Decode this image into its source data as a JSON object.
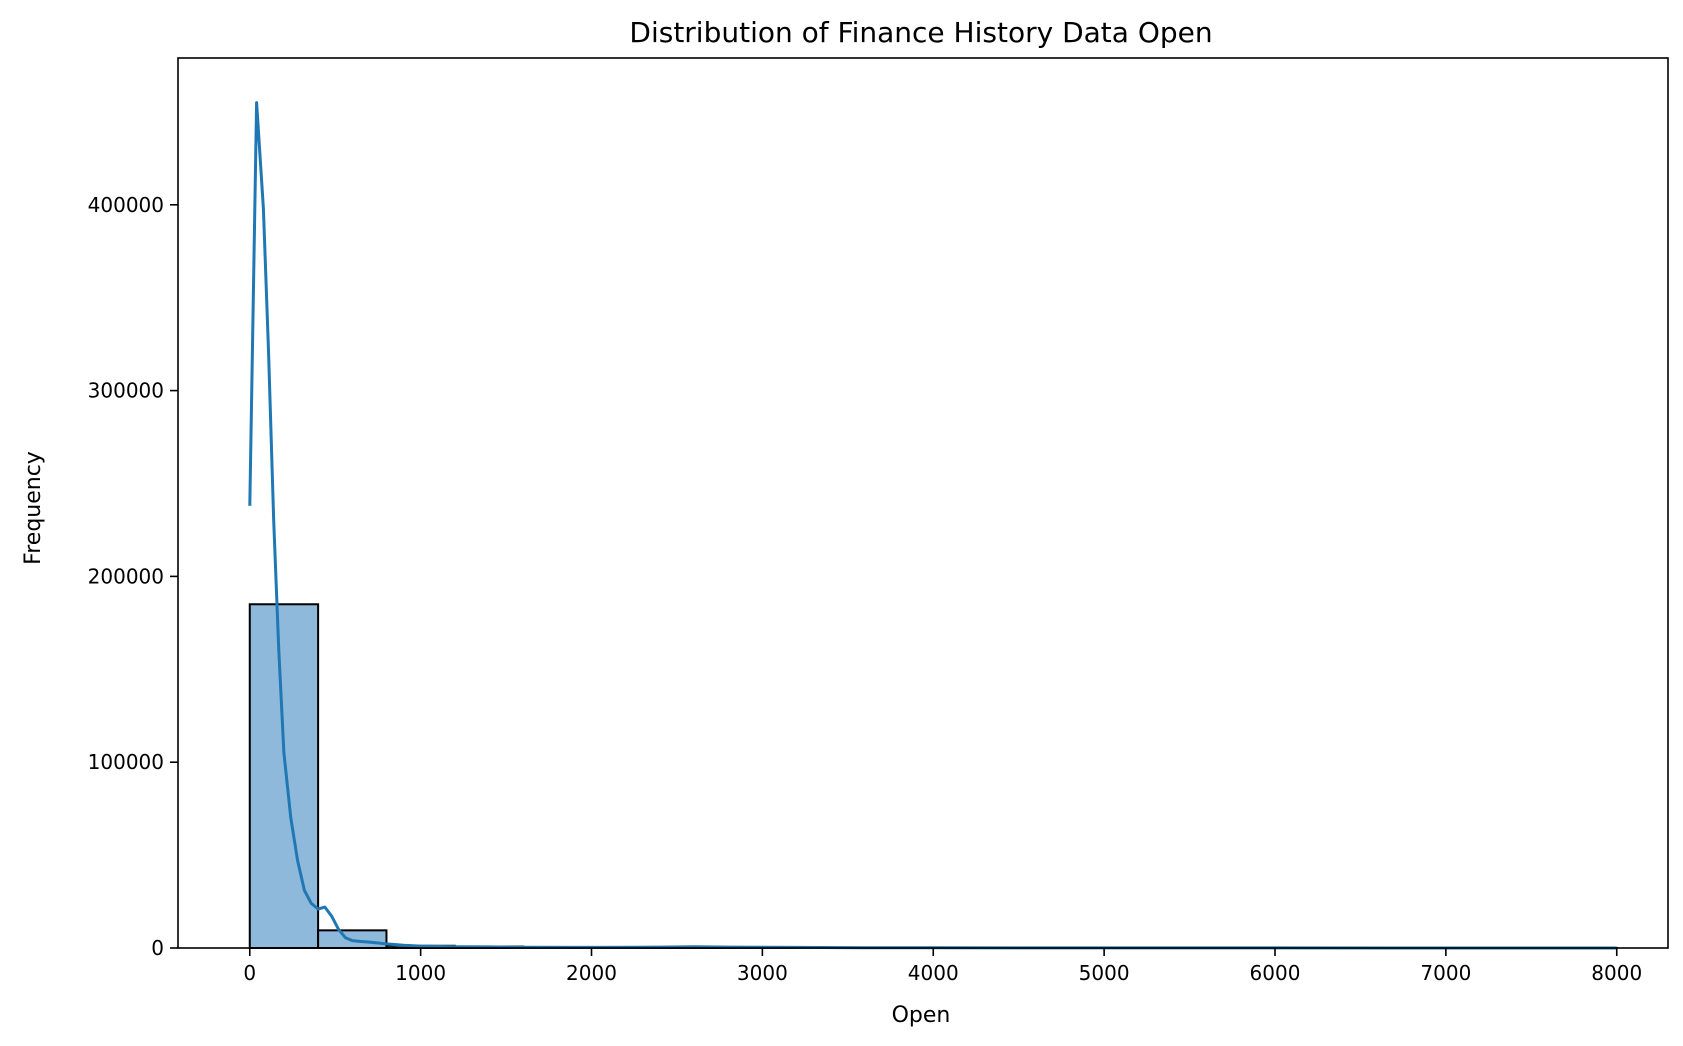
{
  "chart_data": {
    "type": "bar",
    "title": "Distribution of Finance History Data Open",
    "xlabel": "Open",
    "ylabel": "Frequency",
    "xlim": [
      -420,
      8300
    ],
    "ylim": [
      0,
      479000
    ],
    "x_ticks": [
      0,
      1000,
      2000,
      3000,
      4000,
      5000,
      6000,
      7000,
      8000
    ],
    "x_tick_labels": [
      "0",
      "1000",
      "2000",
      "3000",
      "4000",
      "5000",
      "6000",
      "7000",
      "8000"
    ],
    "y_ticks": [
      0,
      100000,
      200000,
      300000,
      400000
    ],
    "y_tick_labels": [
      "0",
      "100000",
      "200000",
      "300000",
      "400000"
    ],
    "grid": false,
    "bar_color": "#8fb9da",
    "bar_edge_color": "#000000",
    "line_color": "#1f77b4",
    "histogram": {
      "bin_edges": [
        0,
        400,
        800,
        1200,
        1600,
        2000,
        2400,
        2800,
        3200,
        3600,
        4000,
        4400,
        4800,
        5200,
        5600,
        6000,
        6400,
        6800,
        7200,
        7600,
        8000
      ],
      "counts": [
        185000,
        9500,
        1200,
        800,
        300,
        200,
        300,
        150,
        100,
        50,
        30,
        20,
        10,
        10,
        5,
        5,
        5,
        3,
        3,
        2
      ]
    },
    "kde": {
      "x": [
        0,
        40,
        80,
        110,
        140,
        170,
        200,
        240,
        280,
        320,
        360,
        400,
        440,
        480,
        520,
        560,
        600,
        650,
        700,
        800,
        900,
        1000,
        1200,
        1400,
        1600,
        2000,
        2400,
        2600,
        2800,
        3200,
        3600,
        4000,
        5000,
        6000,
        7000,
        8000
      ],
      "y": [
        238000,
        455000,
        398000,
        320000,
        230000,
        160000,
        105000,
        70000,
        47000,
        31000,
        24000,
        21000,
        22000,
        17000,
        10000,
        5500,
        4000,
        3500,
        3200,
        2200,
        1500,
        1000,
        700,
        600,
        400,
        300,
        500,
        700,
        500,
        300,
        150,
        100,
        50,
        30,
        20,
        10
      ]
    }
  }
}
